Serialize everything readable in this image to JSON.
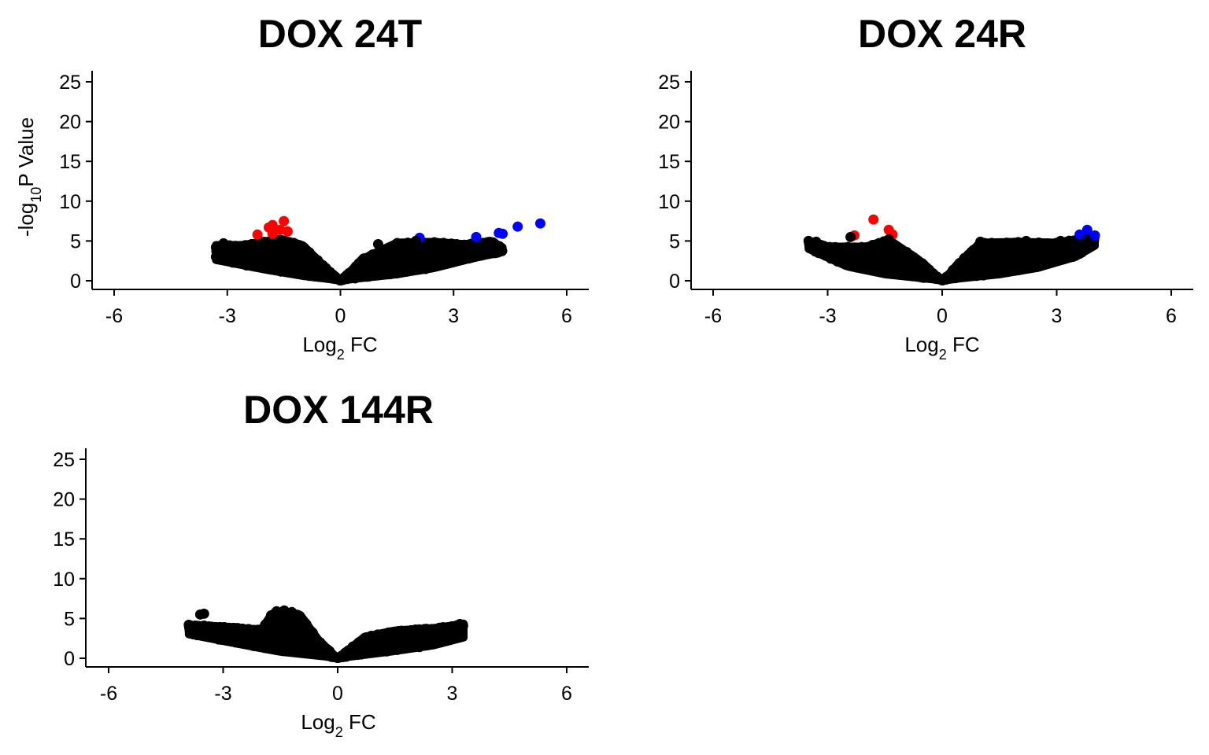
{
  "chart_data": [
    {
      "type": "scatter",
      "title": "DOX 24T",
      "xlabel": "Log2 FC",
      "xlabel_base": "Log",
      "xlabel_sub": "2",
      "xlabel_rest": " FC",
      "ylabel": "-log10P Value",
      "ylabel_base": "-log",
      "ylabel_sub": "10",
      "ylabel_rest": "P Value",
      "xlim": [
        -6.5,
        6.5
      ],
      "ylim": [
        -1,
        26
      ],
      "xticks": [
        -6,
        -3,
        0,
        3,
        6
      ],
      "yticks": [
        0,
        5,
        10,
        15,
        20,
        25
      ],
      "grid": false,
      "cloud": {
        "color": "#000000",
        "x_min": -3.3,
        "x_max": 4.3,
        "left_upper": [
          [
            -3.3,
            4.5
          ],
          [
            -2.6,
            4.5
          ],
          [
            -1.6,
            5.3
          ],
          [
            -1.0,
            4.5
          ],
          [
            -0.5,
            2.2
          ],
          [
            0,
            0
          ]
        ],
        "right_upper": [
          [
            0,
            0
          ],
          [
            0.6,
            2.8
          ],
          [
            1.5,
            4.8
          ],
          [
            2.5,
            4.9
          ],
          [
            3.3,
            4.6
          ],
          [
            4.0,
            5.0
          ],
          [
            4.3,
            4.2
          ]
        ],
        "left_lower": [
          [
            -3.3,
            2.6
          ],
          [
            -2.0,
            1.4
          ],
          [
            -1.0,
            0.6
          ],
          [
            -0.3,
            0.2
          ],
          [
            0,
            0
          ]
        ],
        "right_lower": [
          [
            0,
            0
          ],
          [
            0.5,
            0.3
          ],
          [
            1.5,
            0.8
          ],
          [
            2.5,
            1.6
          ],
          [
            3.5,
            2.8
          ],
          [
            4.3,
            3.6
          ]
        ]
      },
      "series": [
        {
          "color": "#ff0000",
          "points": [
            [
              -2.2,
              5.8
            ],
            [
              -1.9,
              6.7
            ],
            [
              -1.8,
              7.0
            ],
            [
              -1.5,
              7.5
            ],
            [
              -1.4,
              6.2
            ],
            [
              -1.8,
              5.9
            ],
            [
              -1.6,
              6.4
            ]
          ]
        },
        {
          "color": "#0000ff",
          "points": [
            [
              2.1,
              5.4
            ],
            [
              3.6,
              5.5
            ],
            [
              4.2,
              6.0
            ],
            [
              4.3,
              5.9
            ],
            [
              4.7,
              6.8
            ],
            [
              5.3,
              7.2
            ]
          ]
        },
        {
          "color": "#000000",
          "points": [
            [
              -3.3,
              4.2
            ],
            [
              -3.1,
              4.7
            ],
            [
              -3.3,
              3.0
            ],
            [
              4.2,
              4.0
            ],
            [
              4.0,
              4.5
            ],
            [
              2.0,
              5.0
            ],
            [
              1.0,
              4.6
            ]
          ]
        }
      ]
    },
    {
      "type": "scatter",
      "title": "DOX 24R",
      "xlabel": "Log2 FC",
      "xlabel_base": "Log",
      "xlabel_sub": "2",
      "xlabel_rest": " FC",
      "ylabel": "",
      "xlim": [
        -6.5,
        6.5
      ],
      "ylim": [
        -1,
        26
      ],
      "xticks": [
        -6,
        -3,
        0,
        3,
        6
      ],
      "yticks": [
        0,
        5,
        10,
        15,
        20,
        25
      ],
      "grid": false,
      "cloud": {
        "color": "#000000",
        "x_min": -3.5,
        "x_max": 4.0,
        "left_upper": [
          [
            -3.5,
            5.0
          ],
          [
            -3.0,
            4.3
          ],
          [
            -2.0,
            4.3
          ],
          [
            -1.4,
            5.2
          ],
          [
            -0.6,
            2.6
          ],
          [
            0,
            0
          ]
        ],
        "right_upper": [
          [
            0,
            0
          ],
          [
            0.6,
            3.0
          ],
          [
            1.0,
            4.8
          ],
          [
            2.0,
            4.9
          ],
          [
            3.0,
            4.8
          ],
          [
            3.7,
            5.4
          ],
          [
            4.0,
            5.4
          ]
        ],
        "left_lower": [
          [
            -3.5,
            4.0
          ],
          [
            -2.5,
            1.8
          ],
          [
            -1.5,
            0.8
          ],
          [
            -0.3,
            0.2
          ],
          [
            0,
            0
          ]
        ],
        "right_lower": [
          [
            0,
            0
          ],
          [
            0.5,
            0.3
          ],
          [
            1.5,
            0.8
          ],
          [
            2.5,
            1.6
          ],
          [
            3.5,
            3.0
          ],
          [
            4.0,
            4.4
          ]
        ]
      },
      "series": [
        {
          "color": "#ff0000",
          "points": [
            [
              -1.8,
              7.7
            ],
            [
              -1.4,
              6.4
            ],
            [
              -1.3,
              5.8
            ],
            [
              -2.3,
              5.7
            ]
          ]
        },
        {
          "color": "#0000ff",
          "points": [
            [
              3.6,
              5.8
            ],
            [
              3.8,
              6.4
            ],
            [
              4.0,
              5.7
            ]
          ]
        },
        {
          "color": "#000000",
          "points": [
            [
              -2.4,
              5.5
            ],
            [
              -3.5,
              5.0
            ],
            [
              -3.3,
              4.9
            ],
            [
              -1.4,
              5.2
            ],
            [
              1.0,
              4.9
            ],
            [
              2.2,
              5.0
            ],
            [
              3.1,
              5.0
            ]
          ]
        }
      ]
    },
    {
      "type": "scatter",
      "title": "DOX 144R",
      "xlabel": "Log2 FC",
      "xlabel_base": "Log",
      "xlabel_sub": "2",
      "xlabel_rest": " FC",
      "ylabel": "",
      "xlim": [
        -6.5,
        6.5
      ],
      "ylim": [
        -1,
        26
      ],
      "xticks": [
        -6,
        -3,
        0,
        3,
        6
      ],
      "yticks": [
        0,
        5,
        10,
        15,
        20,
        25
      ],
      "grid": false,
      "cloud": {
        "color": "#000000",
        "x_min": -3.9,
        "x_max": 3.3,
        "left_upper": [
          [
            -3.9,
            4.2
          ],
          [
            -3.0,
            4.0
          ],
          [
            -2.0,
            3.6
          ],
          [
            -1.7,
            5.8
          ],
          [
            -1.0,
            5.6
          ],
          [
            -0.5,
            2.3
          ],
          [
            0,
            0
          ]
        ],
        "right_upper": [
          [
            0,
            0
          ],
          [
            0.7,
            2.7
          ],
          [
            1.5,
            3.5
          ],
          [
            2.5,
            3.8
          ],
          [
            3.3,
            4.3
          ]
        ],
        "left_lower": [
          [
            -3.9,
            3.0
          ],
          [
            -2.5,
            1.7
          ],
          [
            -1.5,
            0.8
          ],
          [
            -0.3,
            0.2
          ],
          [
            0,
            0
          ]
        ],
        "right_lower": [
          [
            0,
            0
          ],
          [
            0.5,
            0.3
          ],
          [
            1.5,
            0.9
          ],
          [
            2.5,
            1.6
          ],
          [
            3.3,
            2.6
          ]
        ]
      },
      "series": [
        {
          "color": "#000000",
          "points": [
            [
              -3.9,
              4.2
            ],
            [
              -3.6,
              5.5
            ],
            [
              -3.5,
              5.6
            ],
            [
              -3.5,
              4.1
            ],
            [
              -1.6,
              5.9
            ],
            [
              -1.4,
              6.0
            ],
            [
              -1.2,
              5.8
            ],
            [
              3.2,
              4.3
            ],
            [
              3.2,
              3.3
            ],
            [
              2.9,
              2.5
            ]
          ]
        }
      ]
    }
  ]
}
